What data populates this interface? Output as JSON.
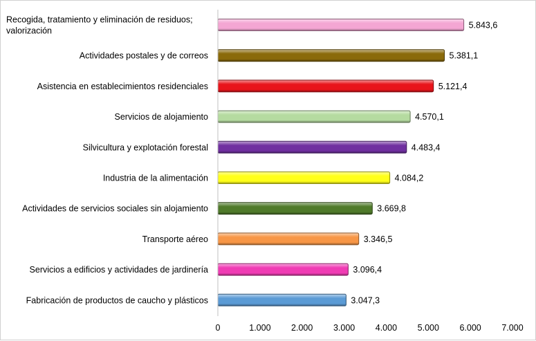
{
  "chart_data": {
    "type": "bar",
    "orientation": "horizontal",
    "categories": [
      [
        "Recogida, tratamiento y eliminación de residuos;",
        "valorización"
      ],
      [
        "Actividades postales y de correos"
      ],
      [
        "Asistencia en establecimientos residenciales"
      ],
      [
        "Servicios de alojamiento"
      ],
      [
        "Silvicultura y explotación forestal"
      ],
      [
        "Industria de la alimentación"
      ],
      [
        "Actividades de servicios sociales sin alojamiento"
      ],
      [
        "Transporte aéreo"
      ],
      [
        "Servicios a edificios y actividades de jardinería"
      ],
      [
        "Fabricación de productos de caucho y plásticos"
      ]
    ],
    "values": [
      5843.6,
      5381.1,
      5121.4,
      4570.1,
      4483.4,
      4084.2,
      3669.8,
      3346.5,
      3096.4,
      3047.3
    ],
    "value_labels": [
      "5.843,6",
      "5.381,1",
      "5.121,4",
      "4.570,1",
      "4.483,4",
      "4.084,2",
      "3.669,8",
      "3.346,5",
      "3.096,4",
      "3.047,3"
    ],
    "colors": [
      "#f4a6d3",
      "#8a6a0a",
      "#e8141b",
      "#b5dba0",
      "#7030a0",
      "#ffff1a",
      "#4f7a2a",
      "#f79646",
      "#f03cb4",
      "#5b9bd5"
    ],
    "xlim": [
      0,
      7000
    ],
    "x_ticks": [
      0,
      1000,
      2000,
      3000,
      4000,
      5000,
      6000,
      7000
    ],
    "x_tick_labels": [
      "0",
      "1.000",
      "2.000",
      "3.000",
      "4.000",
      "5.000",
      "6.000",
      "7.000"
    ],
    "title": "",
    "xlabel": "",
    "ylabel": "",
    "grid": false,
    "legend": "none"
  }
}
